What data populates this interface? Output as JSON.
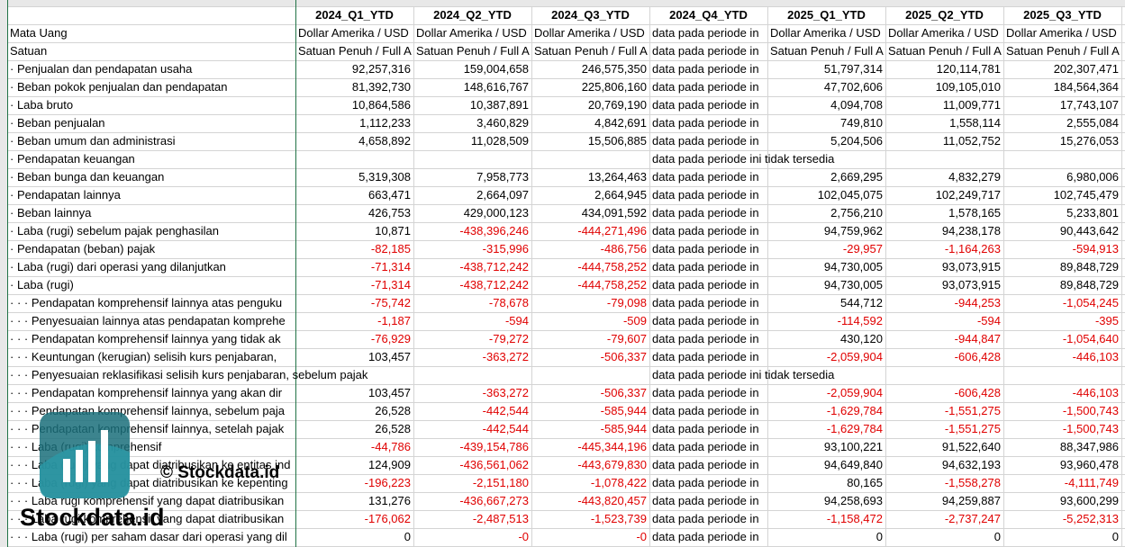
{
  "header": {
    "columns": [
      "2024_Q1_YTD",
      "2024_Q2_YTD",
      "2024_Q3_YTD",
      "2024_Q4_YTD",
      "2025_Q1_YTD",
      "2025_Q2_YTD",
      "2025_Q3_YTD"
    ]
  },
  "rows": [
    {
      "label": "Mata Uang",
      "cells": [
        "Dollar Amerika / USD",
        "Dollar Amerika / USD",
        "Dollar Amerika / USD",
        "data pada periode in",
        "Dollar Amerika / USD",
        "Dollar Amerika / USD",
        "Dollar Amerika / USD"
      ]
    },
    {
      "label": "Satuan",
      "cells": [
        "Satuan Penuh / Full A",
        "Satuan Penuh / Full A",
        "Satuan Penuh / Full A",
        "data pada periode in",
        "Satuan Penuh / Full A",
        "Satuan Penuh / Full A",
        "Satuan Penuh / Full A"
      ]
    },
    {
      "label": "· Penjualan dan pendapatan usaha",
      "cells": [
        "92,257,316",
        "159,004,658",
        "246,575,350",
        "data pada periode in",
        "51,797,314",
        "120,114,781",
        "202,307,471"
      ]
    },
    {
      "label": "· Beban pokok penjualan dan pendapatan",
      "cells": [
        "81,392,730",
        "148,616,767",
        "225,806,160",
        "data pada periode in",
        "47,702,606",
        "109,105,010",
        "184,564,364"
      ]
    },
    {
      "label": "· Laba bruto",
      "cells": [
        "10,864,586",
        "10,387,891",
        "20,769,190",
        "data pada periode in",
        "4,094,708",
        "11,009,771",
        "17,743,107"
      ]
    },
    {
      "label": "· Beban penjualan",
      "cells": [
        "1,112,233",
        "3,460,829",
        "4,842,691",
        "data pada periode in",
        "749,810",
        "1,558,114",
        "2,555,084"
      ]
    },
    {
      "label": "· Beban umum dan administrasi",
      "cells": [
        "4,658,892",
        "11,028,509",
        "15,506,885",
        "data pada periode in",
        "5,204,506",
        "11,052,752",
        "15,276,053"
      ]
    },
    {
      "label": "· Pendapatan keuangan",
      "cells": [
        null,
        null,
        null,
        "data pada periode ini tidak tersedia",
        null,
        null,
        null
      ]
    },
    {
      "label": "· Beban bunga dan keuangan",
      "cells": [
        "5,319,308",
        "7,958,773",
        "13,264,463",
        "data pada periode in",
        "2,669,295",
        "4,832,279",
        "6,980,006"
      ]
    },
    {
      "label": "· Pendapatan lainnya",
      "cells": [
        "663,471",
        "2,664,097",
        "2,664,945",
        "data pada periode in",
        "102,045,075",
        "102,249,717",
        "102,745,479"
      ]
    },
    {
      "label": "· Beban lainnya",
      "cells": [
        "426,753",
        "429,000,123",
        "434,091,592",
        "data pada periode in",
        "2,756,210",
        "1,578,165",
        "5,233,801"
      ]
    },
    {
      "label": "· Laba (rugi) sebelum pajak penghasilan",
      "cells": [
        "10,871",
        "-438,396,246",
        "-444,271,496",
        "data pada periode in",
        "94,759,962",
        "94,238,178",
        "90,443,642"
      ]
    },
    {
      "label": "· Pendapatan (beban) pajak",
      "cells": [
        "-82,185",
        "-315,996",
        "-486,756",
        "data pada periode in",
        "-29,957",
        "-1,164,263",
        "-594,913"
      ]
    },
    {
      "label": "· Laba (rugi) dari operasi yang dilanjutkan",
      "cells": [
        "-71,314",
        "-438,712,242",
        "-444,758,252",
        "data pada periode in",
        "94,730,005",
        "93,073,915",
        "89,848,729"
      ]
    },
    {
      "label": "· Laba (rugi)",
      "cells": [
        "-71,314",
        "-438,712,242",
        "-444,758,252",
        "data pada periode in",
        "94,730,005",
        "93,073,915",
        "89,848,729"
      ]
    },
    {
      "label": "· · · Pendapatan komprehensif lainnya atas penguku",
      "cells": [
        "-75,742",
        "-78,678",
        "-79,098",
        "data pada periode in",
        "544,712",
        "-944,253",
        "-1,054,245"
      ]
    },
    {
      "label": "· · · Penyesuaian lainnya atas pendapatan komprehe",
      "cells": [
        "-1,187",
        "-594",
        "-509",
        "data pada periode in",
        "-114,592",
        "-594",
        "-395"
      ]
    },
    {
      "label": "· · · Pendapatan komprehensif lainnya yang tidak ak",
      "cells": [
        "-76,929",
        "-79,272",
        "-79,607",
        "data pada periode in",
        "430,120",
        "-944,847",
        "-1,054,640"
      ]
    },
    {
      "label": "· · · Keuntungan (kerugian) selisih kurs penjabaran,",
      "cells": [
        "103,457",
        "-363,272",
        "-506,337",
        "data pada periode in",
        "-2,059,904",
        "-606,428",
        "-446,103"
      ]
    },
    {
      "label": "· · · Penyesuaian reklasifikasi selisih kurs penjabaran, sebelum pajak",
      "cells": [
        null,
        null,
        null,
        "data pada periode ini tidak tersedia",
        null,
        null,
        null
      ]
    },
    {
      "label": "· · · Pendapatan komprehensif lainnya yang akan dir",
      "cells": [
        "103,457",
        "-363,272",
        "-506,337",
        "data pada periode in",
        "-2,059,904",
        "-606,428",
        "-446,103"
      ]
    },
    {
      "label": "· · · Pendapatan komprehensif lainnya, sebelum paja",
      "cells": [
        "26,528",
        "-442,544",
        "-585,944",
        "data pada periode in",
        "-1,629,784",
        "-1,551,275",
        "-1,500,743"
      ]
    },
    {
      "label": "· · · Pendapatan komprehensif lainnya, setelah pajak",
      "cells": [
        "26,528",
        "-442,544",
        "-585,944",
        "data pada periode in",
        "-1,629,784",
        "-1,551,275",
        "-1,500,743"
      ]
    },
    {
      "label": "· · · Laba (rugi) komprehensif",
      "cells": [
        "-44,786",
        "-439,154,786",
        "-445,344,196",
        "data pada periode in",
        "93,100,221",
        "91,522,640",
        "88,347,986"
      ]
    },
    {
      "label": "· · · Laba (rugi) yang dapat diatribusikan ke entitas ind",
      "cells": [
        "124,909",
        "-436,561,062",
        "-443,679,830",
        "data pada periode in",
        "94,649,840",
        "94,632,193",
        "93,960,478"
      ]
    },
    {
      "label": "· · · Laba (rugi) yang dapat diatribusikan ke kepenting",
      "cells": [
        "-196,223",
        "-2,151,180",
        "-1,078,422",
        "data pada periode in",
        "80,165",
        "-1,558,278",
        "-4,111,749"
      ]
    },
    {
      "label": "· · · Laba rugi komprehensif yang dapat diatribusikan",
      "cells": [
        "131,276",
        "-436,667,273",
        "-443,820,457",
        "data pada periode in",
        "94,258,693",
        "94,259,887",
        "93,600,299"
      ]
    },
    {
      "label": "· · · Laba rugi komprehensif yang dapat diatribusikan",
      "cells": [
        "-176,062",
        "-2,487,513",
        "-1,523,739",
        "data pada periode in",
        "-1,158,472",
        "-2,737,247",
        "-5,252,313"
      ]
    },
    {
      "label": "· · · Laba (rugi) per saham dasar dari operasi yang dil",
      "cells": [
        "0",
        "-0",
        "-0",
        "data pada periode in",
        "0",
        "0",
        "0"
      ]
    }
  ],
  "watermark": {
    "brand": "Stockdata.id",
    "copyright": "© Stockdata.id"
  }
}
